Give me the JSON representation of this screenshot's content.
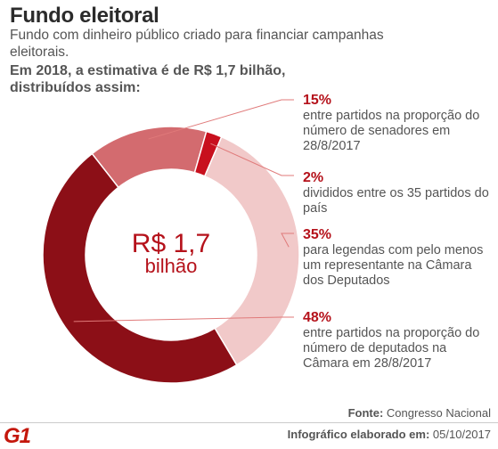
{
  "header": {
    "title": "Fundo eleitoral",
    "subtitle": "Fundo com dinheiro público criado para financiar campanhas eleitorais.",
    "lead": "Em 2018, a estimativa é de R$ 1,7 bilhão, distribuídos assim:"
  },
  "center": {
    "line1": "R$ 1,7",
    "line2": "bilhão"
  },
  "labels": [
    {
      "pct": "15%",
      "desc": "entre partidos na proporção do número de senadores em 28/8/2017"
    },
    {
      "pct": "2%",
      "desc": "divididos entre os 35 partidos do país"
    },
    {
      "pct": "35%",
      "desc": "para legendas com pelo menos um representante na Câmara dos Deputados"
    },
    {
      "pct": "48%",
      "desc": "entre partidos na proporção do número de deputados na Câmara em 28/8/2017"
    }
  ],
  "footer": {
    "source_label": "Fonte:",
    "source": "Congresso Nacional",
    "credit_label": "Infográfico elaborado em:",
    "credit_date": "05/10/2017",
    "logo_text": "G1"
  },
  "chart_data": {
    "type": "pie",
    "variant": "donut",
    "center_text": "R$ 1,7 bilhão",
    "categories": [
      "entre partidos na proporção do número de senadores em 28/8/2017",
      "divididos entre os 35 partidos do país",
      "para legendas com pelo menos um representante na Câmara dos Deputados",
      "entre partidos na proporção do número de deputados na Câmara em 28/8/2017"
    ],
    "values": [
      15,
      2,
      35,
      48
    ],
    "colors": [
      "#d36b6f",
      "#c8101e",
      "#f1c9c9",
      "#8c0f17"
    ]
  }
}
